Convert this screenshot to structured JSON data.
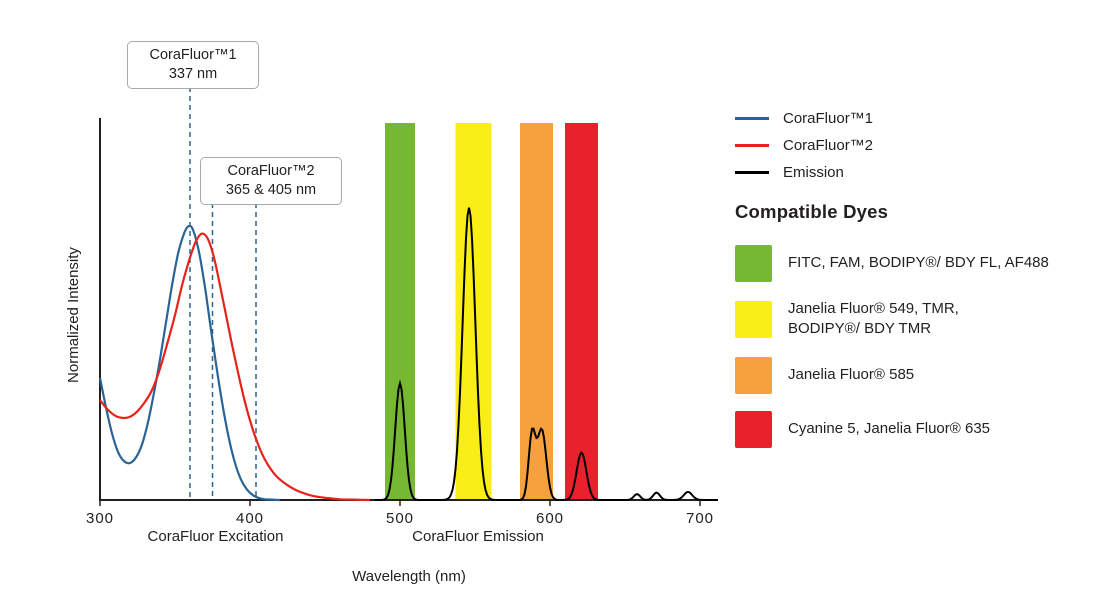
{
  "chart_data": {
    "type": "line",
    "title": "",
    "xlabel": "Wavelength (nm)",
    "ylabel": "Normalized Intensity",
    "x_ticks": [
      300,
      400,
      500,
      600,
      700
    ],
    "x_range": [
      300,
      712
    ],
    "y_range": [
      0,
      1
    ],
    "grid": false,
    "legend_position": "right",
    "section_labels": [
      {
        "label": "CoraFluor Excitation",
        "center_nm": 377
      },
      {
        "label": "CoraFluor Emission",
        "center_nm": 552
      }
    ],
    "excitation_series": [
      {
        "name": "CoraFluor™1",
        "color": "#2a6496",
        "points": [
          [
            300,
            0.33
          ],
          [
            304,
            0.25
          ],
          [
            308,
            0.18
          ],
          [
            312,
            0.13
          ],
          [
            316,
            0.105
          ],
          [
            320,
            0.1
          ],
          [
            324,
            0.115
          ],
          [
            328,
            0.15
          ],
          [
            332,
            0.21
          ],
          [
            336,
            0.29
          ],
          [
            340,
            0.38
          ],
          [
            344,
            0.48
          ],
          [
            348,
            0.58
          ],
          [
            352,
            0.665
          ],
          [
            356,
            0.72
          ],
          [
            359,
            0.74
          ],
          [
            362,
            0.73
          ],
          [
            366,
            0.67
          ],
          [
            370,
            0.575
          ],
          [
            374,
            0.46
          ],
          [
            378,
            0.35
          ],
          [
            382,
            0.25
          ],
          [
            386,
            0.165
          ],
          [
            390,
            0.1
          ],
          [
            394,
            0.055
          ],
          [
            398,
            0.028
          ],
          [
            402,
            0.013
          ],
          [
            406,
            0.005
          ],
          [
            410,
            0.002
          ],
          [
            415,
            0.001
          ],
          [
            420,
            0
          ]
        ]
      },
      {
        "name": "CoraFluor™2",
        "color": "#e5231b",
        "points": [
          [
            300,
            0.27
          ],
          [
            305,
            0.245
          ],
          [
            310,
            0.228
          ],
          [
            315,
            0.222
          ],
          [
            320,
            0.225
          ],
          [
            325,
            0.24
          ],
          [
            330,
            0.265
          ],
          [
            335,
            0.3
          ],
          [
            340,
            0.355
          ],
          [
            345,
            0.425
          ],
          [
            350,
            0.5
          ],
          [
            355,
            0.585
          ],
          [
            360,
            0.655
          ],
          [
            364,
            0.7
          ],
          [
            368,
            0.72
          ],
          [
            372,
            0.705
          ],
          [
            376,
            0.655
          ],
          [
            380,
            0.58
          ],
          [
            384,
            0.5
          ],
          [
            388,
            0.42
          ],
          [
            392,
            0.345
          ],
          [
            396,
            0.275
          ],
          [
            400,
            0.215
          ],
          [
            404,
            0.165
          ],
          [
            408,
            0.125
          ],
          [
            412,
            0.095
          ],
          [
            416,
            0.072
          ],
          [
            420,
            0.055
          ],
          [
            425,
            0.04
          ],
          [
            430,
            0.028
          ],
          [
            436,
            0.018
          ],
          [
            442,
            0.011
          ],
          [
            450,
            0.006
          ],
          [
            460,
            0.002
          ],
          [
            470,
            0.001
          ],
          [
            480,
            0
          ]
        ]
      }
    ],
    "emission_series": {
      "name": "Emission",
      "color": "#000000",
      "range_nm": [
        483,
        712
      ],
      "peaks": [
        {
          "center_nm": 500,
          "height": 0.315,
          "width_nm": 4.5
        },
        {
          "center_nm": 546,
          "height": 0.79,
          "width_nm": 6
        },
        {
          "center_nm": 588,
          "height": 0.175,
          "width_nm": 3.2
        },
        {
          "center_nm": 594.5,
          "height": 0.19,
          "width_nm": 4.2
        },
        {
          "center_nm": 621,
          "height": 0.128,
          "width_nm": 4.6
        },
        {
          "center_nm": 658,
          "height": 0.016,
          "width_nm": 3
        },
        {
          "center_nm": 671,
          "height": 0.02,
          "width_nm": 3.2
        },
        {
          "center_nm": 692,
          "height": 0.022,
          "width_nm": 4
        }
      ]
    },
    "filter_bands": [
      {
        "name": "green",
        "color": "#77b832",
        "from_nm": 490,
        "to_nm": 510
      },
      {
        "name": "yellow",
        "color": "#f9ee16",
        "from_nm": 537,
        "to_nm": 561
      },
      {
        "name": "orange",
        "color": "#f6a13c",
        "from_nm": 580,
        "to_nm": 602
      },
      {
        "name": "red",
        "color": "#e8212c",
        "from_nm": 610,
        "to_nm": 632
      }
    ],
    "annotations": [
      {
        "line1": "CoraFluor™1",
        "line2": "337 nm",
        "dashed_lines_nm": [
          360
        ]
      },
      {
        "line1": "CoraFluor™2",
        "line2": "365 & 405 nm",
        "dashed_lines_nm": [
          375,
          404
        ]
      }
    ],
    "dashed_line_color": "#2a6496"
  },
  "legend": {
    "items": [
      {
        "label": "CoraFluor™1",
        "color": "#2a6496"
      },
      {
        "label": "CoraFluor™2",
        "color": "#e5231b"
      },
      {
        "label": "Emission",
        "color": "#000000"
      }
    ]
  },
  "dyes": {
    "heading": "Compatible Dyes",
    "items": [
      {
        "label": "FITC, FAM, BODIPY®/ BDY FL, AF488",
        "color": "#77b832"
      },
      {
        "label": "Janelia Fluor® 549, TMR,\nBODIPY®/ BDY TMR",
        "color": "#f9ee16"
      },
      {
        "label": "Janelia Fluor® 585",
        "color": "#f6a13c"
      },
      {
        "label": "Cyanine 5, Janelia Fluor® 635",
        "color": "#e8212c"
      }
    ]
  }
}
